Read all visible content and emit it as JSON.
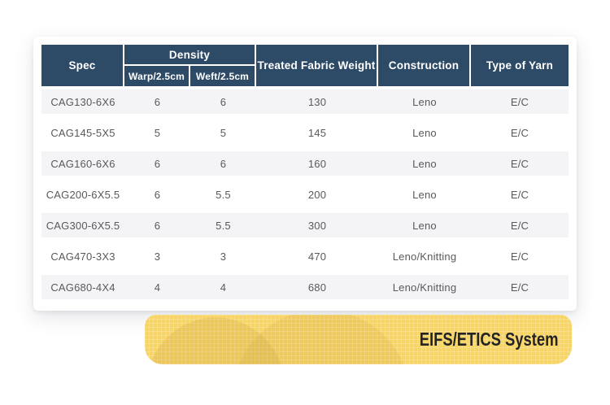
{
  "table": {
    "headers": {
      "spec": "Spec",
      "density": "Density",
      "warp": "Warp/2.5cm",
      "weft": "Weft/2.5cm",
      "treated_fabric_weight": "Treated Fabric Weight",
      "construction": "Construction",
      "type_of_yarn": "Type of Yarn"
    },
    "rows": [
      {
        "spec": "CAG130-6X6",
        "warp": "6",
        "weft": "6",
        "weight": "130",
        "construction": "Leno",
        "yarn": "E/C"
      },
      {
        "spec": "CAG145-5X5",
        "warp": "5",
        "weft": "5",
        "weight": "145",
        "construction": "Leno",
        "yarn": "E/C"
      },
      {
        "spec": "CAG160-6X6",
        "warp": "6",
        "weft": "6",
        "weight": "160",
        "construction": "Leno",
        "yarn": "E/C"
      },
      {
        "spec": "CAG200-6X5.5",
        "warp": "6",
        "weft": "5.5",
        "weight": "200",
        "construction": "Leno",
        "yarn": "E/C"
      },
      {
        "spec": "CAG300-6X5.5",
        "warp": "6",
        "weft": "5.5",
        "weight": "300",
        "construction": "Leno",
        "yarn": "E/C"
      },
      {
        "spec": "CAG470-3X3",
        "warp": "3",
        "weft": "3",
        "weight": "470",
        "construction": "Leno/Knitting",
        "yarn": "E/C"
      },
      {
        "spec": "CAG680-4X4",
        "warp": "4",
        "weft": "4",
        "weight": "680",
        "construction": "Leno/Knitting",
        "yarn": "E/C"
      }
    ]
  },
  "banner": {
    "label": "EIFS/ETICS System"
  },
  "colors": {
    "header_bg": "#2d4a66",
    "stripe": "#f4f4f6",
    "cell_text": "#58595b",
    "banner_bg": "#f7d466",
    "banner_text": "#242424"
  }
}
